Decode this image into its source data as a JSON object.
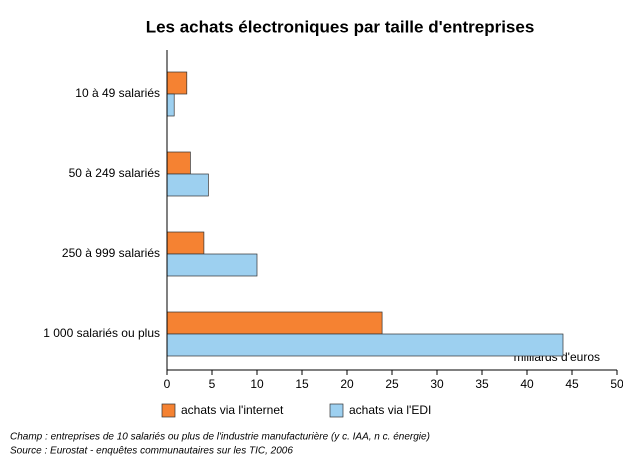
{
  "chart_data": {
    "type": "hbar",
    "title": "Les achats électroniques par taille d'entreprises",
    "categories": [
      "10 à 49 salariés",
      "50 à 249 salariés",
      "250 à 999 salariés",
      "1 000 salariés ou plus"
    ],
    "series": [
      {
        "name": "achats via l'internet",
        "color": "#f58232",
        "values": [
          2.2,
          2.6,
          4.1,
          23.9
        ]
      },
      {
        "name": "achats via l'EDI",
        "color": "#9dd0f0",
        "values": [
          0.8,
          4.6,
          10.0,
          44.0
        ]
      }
    ],
    "xlabel": "milliards d'euros",
    "xlim": [
      0,
      50
    ],
    "xticks": [
      0,
      5,
      10,
      15,
      20,
      25,
      30,
      35,
      40,
      45,
      50
    ],
    "notes": [
      "Champ : entreprises de 10 salariés ou plus de l'industrie manufacturière (y c. IAA, n c. énergie)",
      "Source : Eurostat - enquêtes communautaires sur les TIC, 2006"
    ]
  }
}
